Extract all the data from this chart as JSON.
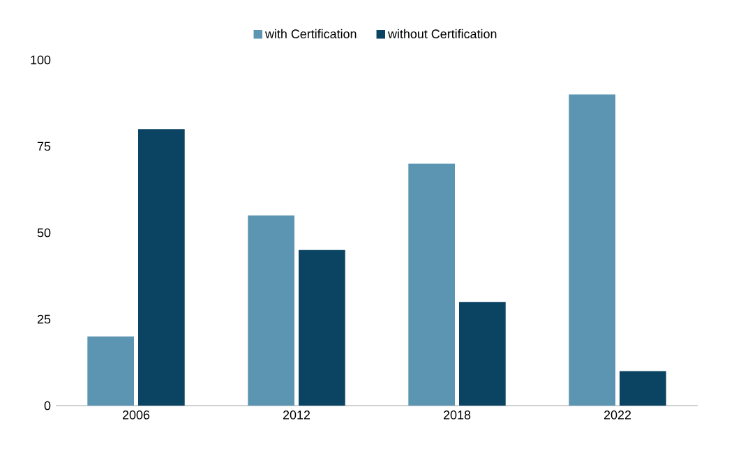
{
  "chart_data": {
    "type": "bar",
    "categories": [
      "2006",
      "2012",
      "2018",
      "2022"
    ],
    "series": [
      {
        "name": "with Certification",
        "color": "#5b95b2",
        "values": [
          20,
          55,
          70,
          90
        ]
      },
      {
        "name": "without Certification",
        "color": "#0b4363",
        "values": [
          80,
          45,
          30,
          10
        ]
      }
    ],
    "ylim": [
      0,
      100
    ],
    "yticks": [
      0,
      25,
      50,
      75,
      100
    ],
    "legend": "top"
  }
}
